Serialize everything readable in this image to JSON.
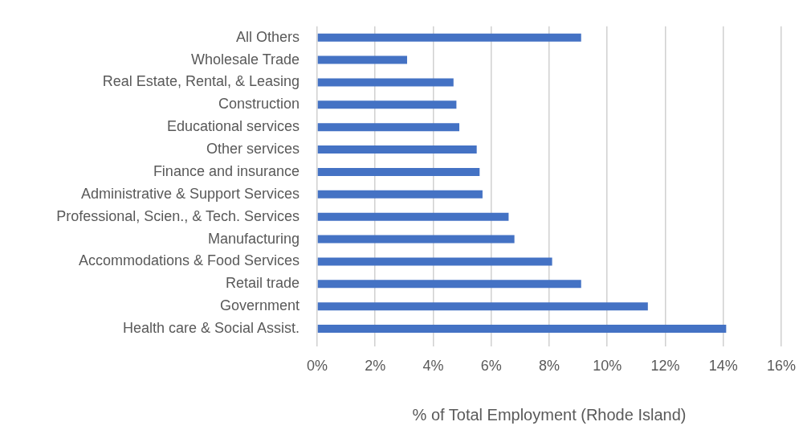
{
  "chart_data": {
    "type": "bar",
    "orientation": "horizontal",
    "xlabel": "% of Total Employment (Rhode Island)",
    "categories": [
      "All Others",
      "Wholesale Trade",
      "Real Estate, Rental, & Leasing",
      "Construction",
      "Educational services",
      "Other services",
      "Finance and insurance",
      "Administrative & Support Services",
      "Professional, Scien., & Tech. Services",
      "Manufacturing",
      "Accommodations & Food Services",
      "Retail trade",
      "Government",
      "Health care & Social Assist."
    ],
    "values": [
      9.1,
      3.1,
      4.7,
      4.8,
      4.9,
      5.5,
      5.6,
      5.7,
      6.6,
      6.8,
      8.1,
      9.1,
      11.4,
      14.1
    ],
    "color": "#4472c4",
    "xlim": [
      0,
      16
    ],
    "xticks": [
      {
        "value": 0,
        "label": "0%"
      },
      {
        "value": 2,
        "label": "2%"
      },
      {
        "value": 4,
        "label": "4%"
      },
      {
        "value": 6,
        "label": "6%"
      },
      {
        "value": 8,
        "label": "8%"
      },
      {
        "value": 10,
        "label": "10%"
      },
      {
        "value": 12,
        "label": "12%"
      },
      {
        "value": 14,
        "label": "14%"
      },
      {
        "value": 16,
        "label": "16%"
      }
    ],
    "grid": "x",
    "legend": false
  }
}
